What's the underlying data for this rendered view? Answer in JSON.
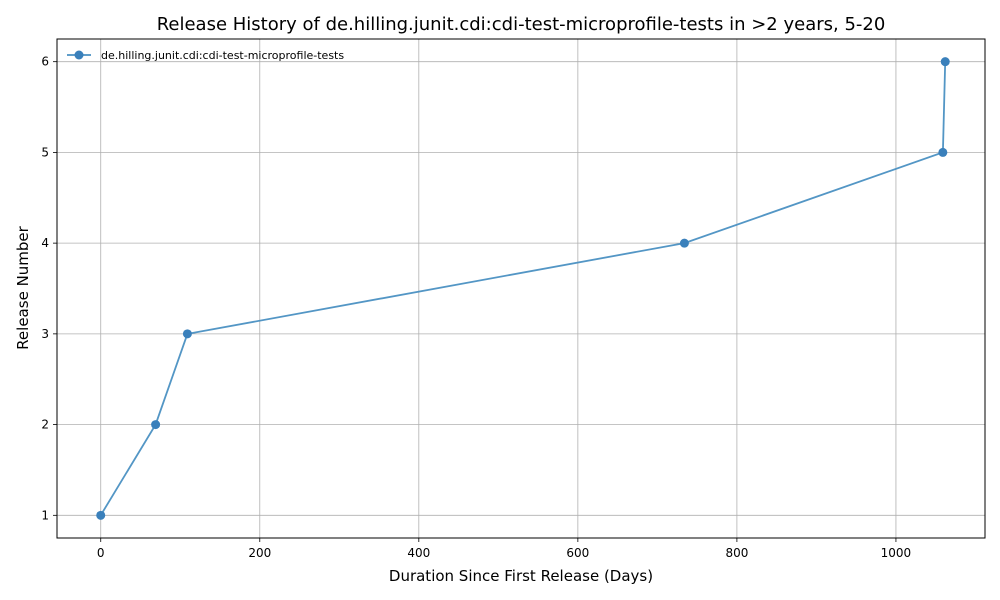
{
  "chart_data": {
    "type": "line",
    "title": "Release History of de.hilling.junit.cdi:cdi-test-microprofile-tests in >2 years, 5-20",
    "xlabel": "Duration Since First Release (Days)",
    "ylabel": "Release Number",
    "xlim": [
      -55,
      1112
    ],
    "ylim": [
      0.75,
      6.25
    ],
    "x_ticks": [
      0,
      200,
      400,
      600,
      800,
      1000
    ],
    "y_ticks": [
      1,
      2,
      3,
      4,
      5,
      6
    ],
    "grid": true,
    "legend_position": "top-left",
    "series": [
      {
        "name": "de.hilling.junit.cdi:cdi-test-microprofile-tests",
        "color": "#4a90c2",
        "marker": "circle",
        "x": [
          0,
          69,
          109,
          734,
          1059,
          1062
        ],
        "y": [
          1,
          2,
          3,
          4,
          5,
          6
        ]
      }
    ]
  }
}
